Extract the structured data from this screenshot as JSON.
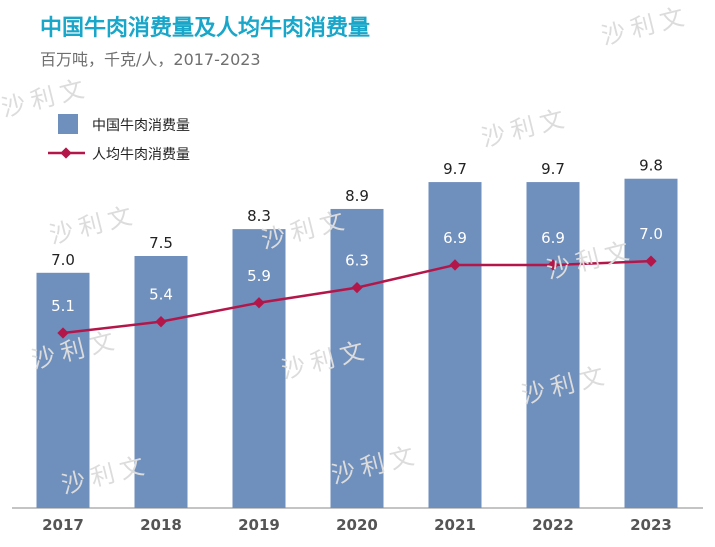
{
  "title": "中国牛肉消费量及人均牛肉消费量",
  "subtitle": "百万吨，千克/人，2017-2023",
  "watermark": "沙利文",
  "colors": {
    "bar": "#6f8fbc",
    "line": "#b3174a",
    "title": "#19a6c9",
    "subtitle": "#6f6f6f",
    "axis": "#555555",
    "label_dark": "#222222",
    "label_light": "#ffffff"
  },
  "chart_data": {
    "type": "bar",
    "categories": [
      "2017",
      "2018",
      "2019",
      "2020",
      "2021",
      "2022",
      "2023"
    ],
    "series": [
      {
        "name": "中国牛肉消费量",
        "type": "bar",
        "values": [
          7.0,
          7.5,
          8.3,
          8.9,
          9.7,
          9.7,
          9.8
        ],
        "labels": [
          "7.0",
          "7.5",
          "8.3",
          "8.9",
          "9.7",
          "9.7",
          "9.8"
        ]
      },
      {
        "name": "人均牛肉消费量",
        "type": "line",
        "values": [
          5.1,
          5.4,
          5.9,
          6.3,
          6.9,
          6.9,
          7.0
        ],
        "labels": [
          "5.1",
          "5.4",
          "5.9",
          "6.3",
          "6.9",
          "6.9",
          "7.0"
        ]
      }
    ],
    "legend_position": "top-left",
    "grid": false,
    "ylim": [
      0,
      10
    ]
  }
}
